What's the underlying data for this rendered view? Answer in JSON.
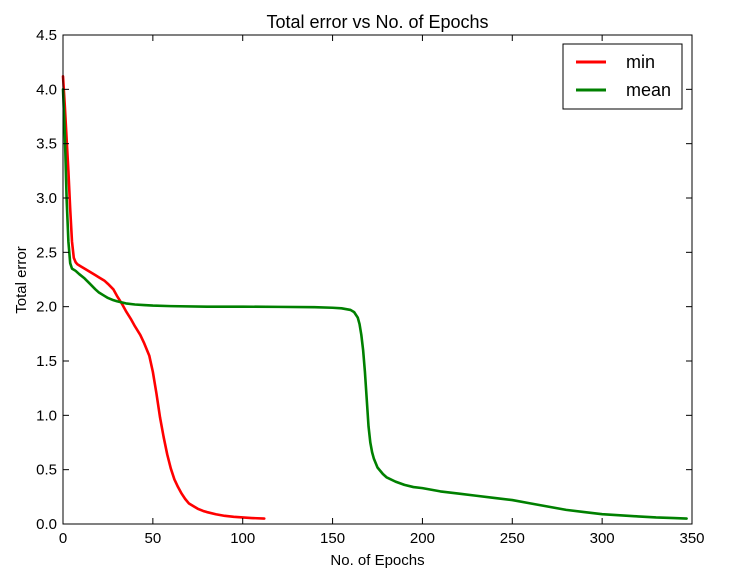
{
  "chart_data": {
    "type": "line",
    "title": "Total error vs No. of Epochs",
    "xlabel": "No. of Epochs",
    "ylabel": "Total error",
    "xlim": [
      0,
      350
    ],
    "ylim": [
      0,
      4.5
    ],
    "xticks": [
      0,
      50,
      100,
      150,
      200,
      250,
      300,
      350
    ],
    "yticks": [
      0.0,
      0.5,
      1.0,
      1.5,
      2.0,
      2.5,
      3.0,
      3.5,
      4.0,
      4.5
    ],
    "xtick_labels": [
      "0",
      "50",
      "100",
      "150",
      "200",
      "250",
      "300",
      "350"
    ],
    "ytick_labels": [
      "0.0",
      "0.5",
      "1.0",
      "1.5",
      "2.0",
      "2.5",
      "3.0",
      "3.5",
      "4.0",
      "4.5"
    ],
    "grid": false,
    "legend_position": "top-right",
    "series": [
      {
        "name": "min",
        "color": "#ff0000",
        "x": [
          0,
          1,
          2,
          3,
          4,
          5,
          6,
          7,
          8,
          10,
          12,
          15,
          18,
          20,
          23,
          25,
          28,
          30,
          33,
          35,
          38,
          40,
          43,
          45,
          48,
          50,
          52,
          54,
          56,
          58,
          60,
          62,
          64,
          66,
          68,
          70,
          73,
          75,
          78,
          80,
          85,
          90,
          95,
          100,
          105,
          112
        ],
        "y": [
          4.12,
          3.85,
          3.55,
          3.25,
          2.9,
          2.6,
          2.45,
          2.41,
          2.39,
          2.37,
          2.35,
          2.32,
          2.29,
          2.27,
          2.24,
          2.21,
          2.16,
          2.1,
          2.02,
          1.96,
          1.88,
          1.82,
          1.74,
          1.67,
          1.55,
          1.4,
          1.2,
          0.98,
          0.8,
          0.64,
          0.51,
          0.41,
          0.34,
          0.28,
          0.23,
          0.19,
          0.16,
          0.14,
          0.12,
          0.11,
          0.09,
          0.075,
          0.066,
          0.06,
          0.055,
          0.05
        ]
      },
      {
        "name": "mean",
        "color": "#008000",
        "x": [
          0,
          1,
          2,
          3,
          4,
          5,
          7,
          9,
          12,
          15,
          18,
          20,
          23,
          25,
          28,
          30,
          35,
          40,
          45,
          50,
          60,
          80,
          100,
          120,
          140,
          150,
          155,
          160,
          162,
          164,
          165,
          166,
          167,
          168,
          169,
          170,
          171,
          172,
          173,
          175,
          178,
          180,
          185,
          190,
          195,
          200,
          210,
          220,
          230,
          240,
          250,
          260,
          270,
          280,
          290,
          300,
          310,
          320,
          330,
          340,
          347
        ],
        "y": [
          4.0,
          3.6,
          3.0,
          2.6,
          2.4,
          2.35,
          2.33,
          2.3,
          2.26,
          2.21,
          2.16,
          2.13,
          2.1,
          2.08,
          2.06,
          2.05,
          2.03,
          2.02,
          2.015,
          2.01,
          2.005,
          2.0,
          2.0,
          1.998,
          1.995,
          1.99,
          1.985,
          1.97,
          1.95,
          1.9,
          1.84,
          1.74,
          1.6,
          1.4,
          1.15,
          0.9,
          0.75,
          0.66,
          0.6,
          0.52,
          0.46,
          0.43,
          0.39,
          0.36,
          0.34,
          0.33,
          0.3,
          0.28,
          0.26,
          0.24,
          0.22,
          0.19,
          0.16,
          0.13,
          0.11,
          0.09,
          0.08,
          0.07,
          0.06,
          0.055,
          0.05
        ]
      }
    ]
  }
}
